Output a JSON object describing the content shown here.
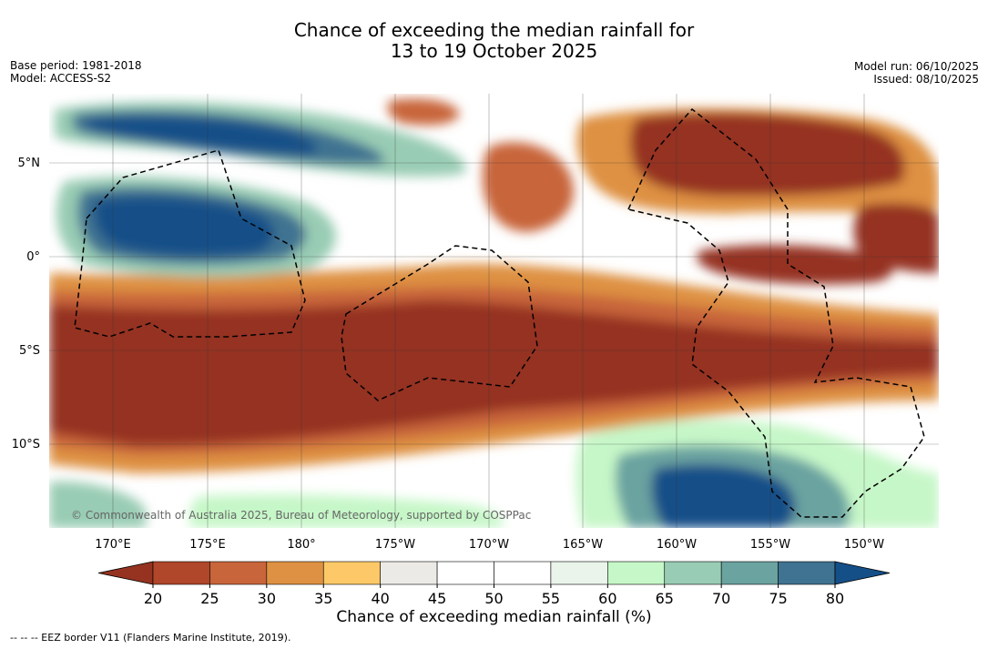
{
  "title": {
    "line1": "Chance of exceeding the median rainfall for",
    "line2": "13 to 19 October 2025"
  },
  "meta_left": {
    "base_period": "Base period: 1981-2018",
    "model": "Model: ACCESS-S2"
  },
  "meta_right": {
    "model_run": "Model run: 06/10/2025",
    "issued": "Issued: 08/10/2025"
  },
  "map": {
    "lat_labels": [
      "5°N",
      "0°",
      "5°S",
      "10°S"
    ],
    "lon_labels": [
      "170°E",
      "175°E",
      "180°",
      "175°W",
      "170°W",
      "165°W",
      "160°W",
      "155°W",
      "150°W"
    ],
    "copyright": "© Commonwealth of Australia 2025, Bureau of Meteorology, supported by COSPPac"
  },
  "colorbar": {
    "ticks": [
      "20",
      "25",
      "30",
      "35",
      "40",
      "45",
      "50",
      "55",
      "60",
      "65",
      "70",
      "75",
      "80"
    ],
    "colors": [
      "#b0462a",
      "#c8653a",
      "#de9142",
      "#fdc968",
      "#eceae6",
      "#ffffff",
      "#ffffff",
      "#eaf4ea",
      "#c6f7c8",
      "#99ccb4",
      "#6aa3a0",
      "#3f7391"
    ],
    "under_color": "#953320",
    "over_color": "#154f88",
    "title": "Chance of exceeding median rainfall (%)"
  },
  "footer": "--  --  -- EEZ border V11 (Flanders Marine Institute, 2019)."
}
